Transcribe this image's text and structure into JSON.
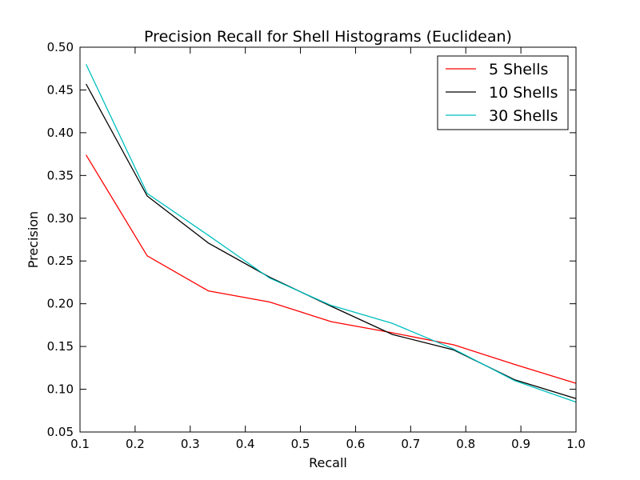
{
  "chart_data": {
    "type": "line",
    "title": "Precision Recall for Shell Histograms (Euclidean)",
    "xlabel": "Recall",
    "ylabel": "Precision",
    "xlim": [
      0.1,
      1.0
    ],
    "ylim": [
      0.05,
      0.5
    ],
    "xticks": [
      0.1,
      0.2,
      0.3,
      0.4,
      0.5,
      0.6,
      0.7,
      0.8,
      0.9,
      1.0
    ],
    "xtick_labels": [
      "0.1",
      "0.2",
      "0.3",
      "0.4",
      "0.5",
      "0.6",
      "0.7",
      "0.8",
      "0.9",
      "1.0"
    ],
    "yticks": [
      0.05,
      0.1,
      0.15,
      0.2,
      0.25,
      0.3,
      0.35,
      0.4,
      0.45,
      0.5
    ],
    "ytick_labels": [
      "0.05",
      "0.10",
      "0.15",
      "0.20",
      "0.25",
      "0.30",
      "0.35",
      "0.40",
      "0.45",
      "0.50"
    ],
    "x": [
      0.111,
      0.222,
      0.333,
      0.444,
      0.556,
      0.667,
      0.778,
      0.889,
      1.0
    ],
    "grid": false,
    "legend_position": "top-right",
    "series": [
      {
        "name": "5 Shells",
        "color": "#ff0000",
        "values": [
          0.374,
          0.256,
          0.215,
          0.202,
          0.179,
          0.166,
          0.152,
          0.129,
          0.107
        ]
      },
      {
        "name": "10 Shells",
        "color": "#000000",
        "values": [
          0.457,
          0.326,
          0.271,
          0.231,
          0.197,
          0.164,
          0.146,
          0.111,
          0.089
        ]
      },
      {
        "name": "30 Shells",
        "color": "#00bfbf",
        "values": [
          0.48,
          0.329,
          0.28,
          0.23,
          0.198,
          0.177,
          0.147,
          0.11,
          0.085
        ]
      }
    ]
  }
}
